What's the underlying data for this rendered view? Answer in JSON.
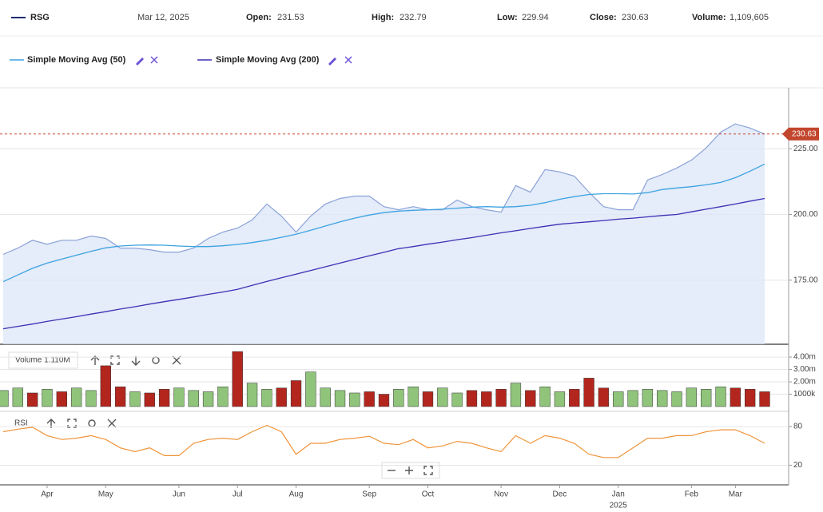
{
  "chart_data": [
    {
      "type": "area",
      "header": {
        "symbol": "RSG",
        "date": "Mar 12, 2025",
        "open_label": "Open:",
        "open": 231.53,
        "high_label": "High:",
        "high": 232.79,
        "low_label": "Low:",
        "low": 229.94,
        "close_label": "Close:",
        "close": 230.63,
        "volume_label": "Volume:",
        "volume": {
          "value": 1109605,
          "label": "1,109,605"
        }
      },
      "categories": [
        null,
        null,
        null,
        "Apr",
        null,
        null,
        null,
        "May",
        null,
        null,
        null,
        null,
        "Jun",
        null,
        null,
        null,
        "Jul",
        null,
        null,
        null,
        "Aug",
        null,
        null,
        null,
        null,
        "Sep",
        null,
        null,
        null,
        "Oct",
        null,
        null,
        null,
        null,
        "Nov",
        null,
        null,
        null,
        "Dec",
        null,
        null,
        null,
        "Jan",
        null,
        null,
        null,
        null,
        "Feb",
        null,
        null,
        "Mar",
        null,
        null
      ],
      "year_label": "2025",
      "series": [
        {
          "name": "RSG",
          "color": "#8aa2d6",
          "fill": "#dce6f8",
          "values": [
            184.8,
            187.2,
            190.2,
            188.7,
            190.2,
            190.2,
            191.8,
            190.9,
            187.2,
            187.2,
            186.6,
            185.7,
            185.7,
            187.2,
            190.9,
            193.3,
            194.8,
            197.9,
            204.0,
            199.4,
            193.3,
            199.4,
            204.0,
            206.1,
            207.0,
            207.0,
            203.0,
            201.8,
            203.0,
            201.8,
            201.8,
            205.5,
            203.0,
            201.8,
            200.9,
            211.0,
            208.5,
            217.1,
            216.2,
            214.6,
            208.5,
            203.0,
            201.8,
            201.8,
            213.1,
            215.2,
            217.7,
            220.7,
            225.3,
            231.4,
            234.5,
            232.9,
            230.63
          ]
        },
        {
          "name": "Simple Moving Avg (50)",
          "color": "#3ba3e0",
          "values": [
            174.4,
            177.0,
            179.5,
            181.5,
            183.0,
            184.5,
            186.0,
            187.3,
            188.0,
            188.3,
            188.4,
            188.3,
            188.0,
            187.8,
            187.8,
            188.1,
            188.6,
            189.3,
            190.2,
            191.3,
            192.5,
            194.0,
            195.6,
            197.2,
            198.6,
            199.8,
            200.7,
            201.3,
            201.6,
            201.8,
            202.0,
            202.4,
            202.8,
            203.0,
            202.8,
            203.0,
            203.5,
            204.5,
            205.8,
            206.8,
            207.6,
            207.9,
            207.9,
            207.8,
            208.3,
            209.5,
            210.1,
            210.6,
            211.3,
            212.2,
            214.0,
            216.5,
            219.2
          ]
        },
        {
          "name": "Simple Moving Avg (200)",
          "color": "#3f2fb5",
          "values": [
            156.5,
            157.4,
            158.3,
            159.3,
            160.2,
            161.1,
            162.1,
            163.0,
            164.0,
            164.9,
            165.9,
            166.8,
            167.7,
            168.6,
            169.6,
            170.5,
            171.5,
            173.0,
            174.5,
            175.9,
            177.3,
            178.7,
            180.1,
            181.5,
            182.9,
            184.3,
            185.6,
            187.0,
            187.8,
            188.7,
            189.5,
            190.4,
            191.2,
            192.1,
            193.0,
            193.8,
            194.7,
            195.5,
            196.3,
            196.8,
            197.2,
            197.7,
            198.2,
            198.6,
            199.1,
            199.6,
            200.0,
            201.0,
            202.0,
            203.0,
            204.0,
            205.1,
            206.1
          ]
        }
      ],
      "ylim": [
        150.6,
        248.2
      ],
      "yticks": [
        {
          "value": 175,
          "label": "175.00"
        },
        {
          "value": 200,
          "label": "200.00"
        },
        {
          "value": 225,
          "label": "225.00"
        }
      ],
      "grid": true
    },
    {
      "type": "bar",
      "label": "Volume 1.110M",
      "values": [
        1300000,
        1500000,
        1100000,
        1400000,
        1200000,
        1500000,
        1300000,
        3300000,
        1600000,
        1200000,
        1100000,
        1400000,
        1500000,
        1300000,
        1200000,
        1600000,
        4450000,
        1900000,
        1400000,
        1500000,
        2100000,
        2800000,
        1500000,
        1300000,
        1100000,
        1200000,
        1000000,
        1400000,
        1600000,
        1200000,
        1500000,
        1100000,
        1300000,
        1200000,
        1400000,
        1900000,
        1300000,
        1600000,
        1200000,
        1400000,
        2300000,
        1500000,
        1200000,
        1300000,
        1400000,
        1300000,
        1200000,
        1500000,
        1400000,
        1600000,
        1500000,
        1400000,
        1200000
      ],
      "colors": [
        "#8fc47a",
        "#8fc47a",
        "#b3261e",
        "#8fc47a",
        "#b3261e",
        "#8fc47a",
        "#8fc47a",
        "#b3261e",
        "#b3261e",
        "#8fc47a",
        "#b3261e",
        "#b3261e",
        "#8fc47a",
        "#8fc47a",
        "#8fc47a",
        "#8fc47a",
        "#b3261e",
        "#8fc47a",
        "#8fc47a",
        "#b3261e",
        "#b3261e",
        "#8fc47a",
        "#8fc47a",
        "#8fc47a",
        "#8fc47a",
        "#b3261e",
        "#b3261e",
        "#8fc47a",
        "#8fc47a",
        "#b3261e",
        "#8fc47a",
        "#8fc47a",
        "#b3261e",
        "#b3261e",
        "#b3261e",
        "#8fc47a",
        "#b3261e",
        "#8fc47a",
        "#8fc47a",
        "#b3261e",
        "#b3261e",
        "#b3261e",
        "#8fc47a",
        "#8fc47a",
        "#8fc47a",
        "#8fc47a",
        "#8fc47a",
        "#8fc47a",
        "#8fc47a",
        "#8fc47a",
        "#b3261e",
        "#b3261e",
        "#b3261e"
      ],
      "ylim": [
        0,
        4650000
      ],
      "yticks": [
        {
          "value": 1000000,
          "label": "1000k"
        },
        {
          "value": 2000000,
          "label": "2.00m"
        },
        {
          "value": 3000000,
          "label": "3.00m"
        },
        {
          "value": 4000000,
          "label": "4.00m"
        }
      ]
    },
    {
      "type": "line",
      "label": "RSI",
      "color": "#f0943a",
      "values": [
        72,
        76,
        79,
        66,
        60,
        62,
        66,
        60,
        47,
        41,
        47,
        35,
        35,
        54,
        60,
        62,
        60,
        72,
        82,
        72,
        37,
        54,
        54,
        60,
        62,
        65,
        54,
        52,
        60,
        47,
        50,
        57,
        54,
        47,
        41,
        66,
        54,
        66,
        62,
        54,
        37,
        32,
        32,
        47,
        62,
        62,
        66,
        66,
        72,
        75,
        75,
        66,
        54
      ],
      "ylim": [
        -8,
        97.5
      ],
      "yticks": [
        20,
        80
      ],
      "grid": true
    }
  ]
}
